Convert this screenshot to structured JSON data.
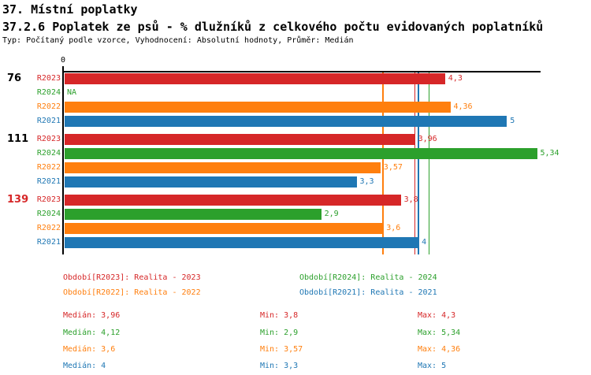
{
  "page": {
    "title": "37. Místní poplatky",
    "subtitle": "37.2.6 Poplatek ze psů - % dlužníků z celkového počtu evidovaných poplatníků",
    "meta": "Typ: Počítaný podle vzorce, Vyhodnocení: Absolutní hodnoty, Průměr: Medián"
  },
  "colors": {
    "R2023": "#d62728",
    "R2024": "#2ca02c",
    "R2022": "#ff7f0e",
    "R2021": "#1f77b4",
    "axis": "#000000",
    "highlight": "#d62728"
  },
  "chart_data": {
    "type": "bar",
    "orientation": "horizontal",
    "x_axis": {
      "zero_label": "0",
      "xlim": [
        0,
        5.38
      ],
      "grid": false
    },
    "series_order": [
      "R2023",
      "R2024",
      "R2022",
      "R2021"
    ],
    "groups": [
      {
        "label": "76",
        "label_color": "#000000",
        "bars": [
          {
            "series": "R2023",
            "value": 4.3,
            "label": "4,3"
          },
          {
            "series": "R2024",
            "value": null,
            "label": "NA"
          },
          {
            "series": "R2022",
            "value": 4.36,
            "label": "4,36"
          },
          {
            "series": "R2021",
            "value": 5,
            "label": "5"
          }
        ]
      },
      {
        "label": "111",
        "label_color": "#000000",
        "bars": [
          {
            "series": "R2023",
            "value": 3.96,
            "label": "3,96"
          },
          {
            "series": "R2024",
            "value": 5.34,
            "label": "5,34"
          },
          {
            "series": "R2022",
            "value": 3.57,
            "label": "3,57"
          },
          {
            "series": "R2021",
            "value": 3.3,
            "label": "3,3"
          }
        ]
      },
      {
        "label": "139",
        "label_color": "#d62728",
        "bars": [
          {
            "series": "R2023",
            "value": 3.8,
            "label": "3,8"
          },
          {
            "series": "R2024",
            "value": 2.9,
            "label": "2,9"
          },
          {
            "series": "R2022",
            "value": 3.6,
            "label": "3,6"
          },
          {
            "series": "R2021",
            "value": 4,
            "label": "4"
          }
        ]
      }
    ],
    "median_lines": [
      {
        "series": "R2022",
        "value": 3.6
      },
      {
        "series": "R2023",
        "value": 3.96
      },
      {
        "series": "R2021",
        "value": 4
      },
      {
        "series": "R2024",
        "value": 4.12
      }
    ],
    "legend": [
      {
        "series": "R2023",
        "label": "Období[R2023]: Realita - 2023"
      },
      {
        "series": "R2024",
        "label": "Období[R2024]: Realita - 2024"
      },
      {
        "series": "R2022",
        "label": "Období[R2022]: Realita - 2022"
      },
      {
        "series": "R2021",
        "label": "Období[R2021]: Realita - 2021"
      }
    ],
    "stats": [
      {
        "series": "R2023",
        "median": "Medián: 3,96",
        "min": "Min: 3,8",
        "max": "Max: 4,3"
      },
      {
        "series": "R2024",
        "median": "Medián: 4,12",
        "min": "Min: 2,9",
        "max": "Max: 5,34"
      },
      {
        "series": "R2022",
        "median": "Medián: 3,6",
        "min": "Min: 3,57",
        "max": "Max: 4,36"
      },
      {
        "series": "R2021",
        "median": "Medián: 4",
        "min": "Min: 3,3",
        "max": "Max: 5"
      }
    ]
  }
}
